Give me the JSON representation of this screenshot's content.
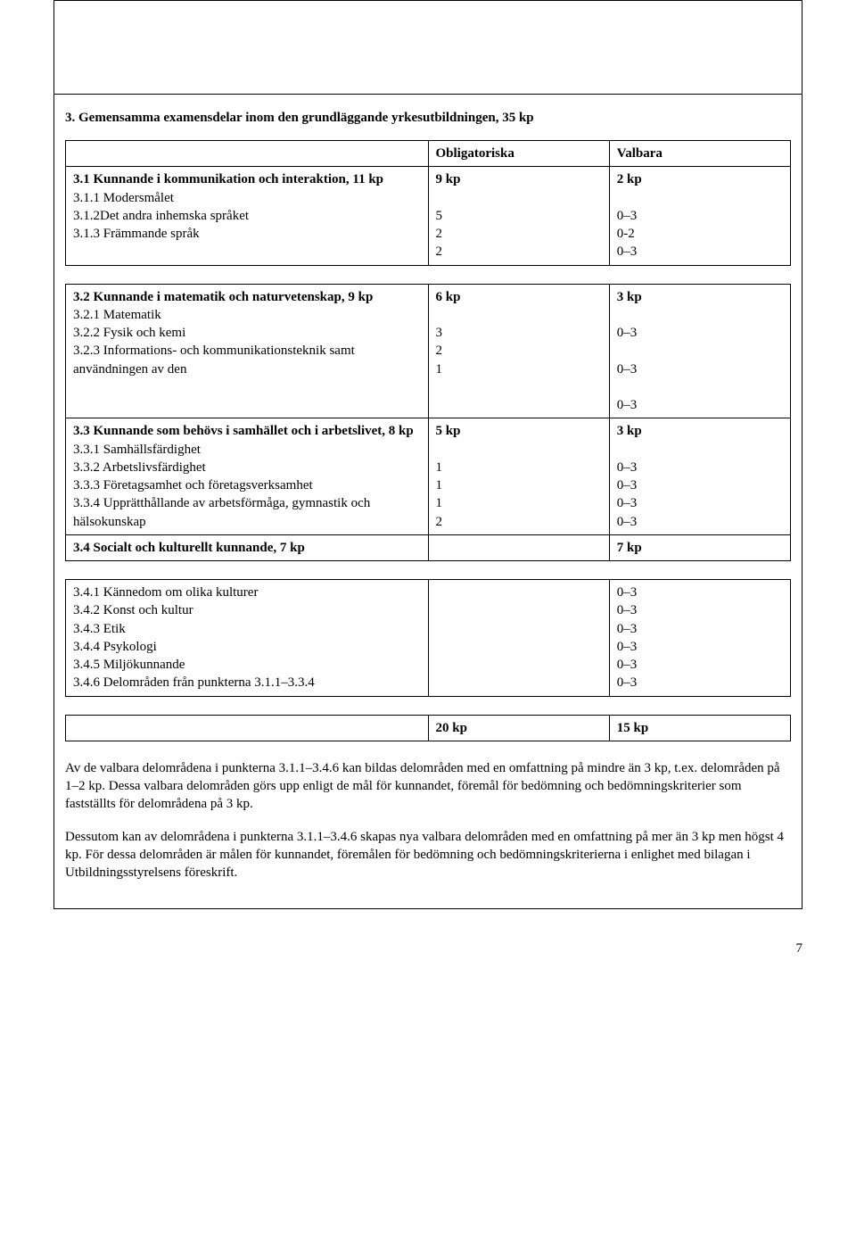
{
  "heading": "3. Gemensamma examensdelar inom den grundläggande yrkesutbildningen, 35 kp",
  "table1": {
    "header": {
      "label": "",
      "oblig": "Obligatoriska",
      "valb": "Valbara"
    },
    "rows": [
      {
        "label": "3.1 Kunnande i kommunikation och interaktion, 11 kp\n3.1.1 Modersmålet\n3.1.2Det andra inhemska språket\n3.1.3 Främmande språk",
        "a": "9 kp\n\n5\n2\n2",
        "b": "2 kp\n\n0–3\n0-2\n0–3",
        "bold_first": true
      }
    ]
  },
  "table2": {
    "rows": [
      {
        "label": "3.2 Kunnande i matematik och naturvetenskap, 9 kp\n3.2.1 Matematik\n3.2.2 Fysik och kemi\n3.2.3 Informations- och kommunikationsteknik samt användningen av den",
        "a": "6 kp\n\n3\n2\n1",
        "b": "3 kp\n\n0–3\n\n0–3\n\n0–3"
      },
      {
        "label": "3.3 Kunnande som behövs i samhället och i arbetslivet, 8 kp\n3.3.1 Samhällsfärdighet\n3.3.2 Arbetslivsfärdighet\n3.3.3 Företagsamhet och företagsverksamhet\n3.3.4 Upprätthållande av arbetsförmåga, gymnastik och hälsokunskap",
        "a": "5 kp\n\n1\n1\n1\n2",
        "b": "3 kp\n\n0–3\n0–3\n0–3\n0–3"
      },
      {
        "label": "3.4 Socialt och kulturellt kunnande, 7 kp",
        "a": "",
        "b": "7 kp",
        "all_bold": true
      }
    ]
  },
  "table3": {
    "rows": [
      {
        "label": "3.4.1 Kännedom om olika kulturer\n3.4.2 Konst och kultur\n3.4.3 Etik\n3.4.4 Psykologi\n3.4.5 Miljökunnande\n3.4.6 Delområden från punkterna 3.1.1–3.3.4",
        "a": "",
        "b": "0–3\n0–3\n0–3\n0–3\n0–3\n0–3"
      }
    ]
  },
  "table4": {
    "rows": [
      {
        "label": "",
        "a": "20 kp",
        "b": "15 kp",
        "all_bold": true
      }
    ]
  },
  "para1": "Av de valbara delområdena i punkterna 3.1.1–3.4.6 kan bildas delområden med en omfattning på mindre än 3 kp, t.ex. delområden på 1–2 kp. Dessa valbara delområden görs upp enligt de mål för kunnandet, föremål för bedömning och bedömningskriterier som fastställts för delområdena på 3 kp.",
  "para2": "Dessutom kan av delområdena i punkterna 3.1.1–3.4.6 skapas nya valbara delområden med en omfattning på mer än 3 kp men högst 4 kp. För dessa delområden är målen för kunnandet, föremålen för bedömning och bedömningskriterierna i enlighet med bilagan i Utbildningsstyrelsens föreskrift.",
  "page_number": "7"
}
